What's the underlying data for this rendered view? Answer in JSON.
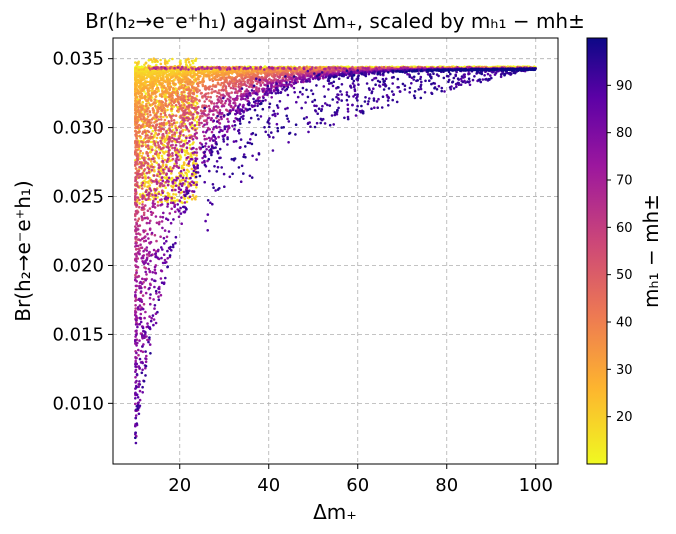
{
  "chart_data": {
    "type": "scatter",
    "title": "Br(h₂→e⁻e⁺h₁) against Δm₊, scaled by mₕ₁ − mh±",
    "xlabel": "Δm₊",
    "ylabel": "Br(h₂→e⁻e⁺h₁)",
    "colorbar_label": "mₕ₁ − mh±",
    "colormap": "plasma",
    "colormap_stops": [
      "#0d0887",
      "#5c01a6",
      "#9c179e",
      "#cc4778",
      "#ed7953",
      "#fdb42f",
      "#f0f921"
    ],
    "xlim": [
      5,
      105
    ],
    "ylim": [
      0.0056,
      0.0365
    ],
    "clim": [
      10,
      100
    ],
    "xticks": [
      20,
      40,
      60,
      80,
      100
    ],
    "yticks": [
      0.01,
      0.015,
      0.02,
      0.025,
      0.03,
      0.035
    ],
    "ytick_labels": [
      "0.010",
      "0.015",
      "0.020",
      "0.025",
      "0.030",
      "0.035"
    ],
    "cticks": [
      20,
      30,
      40,
      50,
      60,
      70,
      80,
      90
    ],
    "grid": true,
    "x_range_of_points": [
      10,
      100
    ],
    "y_plateau": 0.0343,
    "y_min_observed": 0.0071,
    "note_points": "dense cloud; lower envelope rises from ~0.007 at x≈10 to plateau ~0.0343 by x≈60; color increases with distance below plateau"
  }
}
